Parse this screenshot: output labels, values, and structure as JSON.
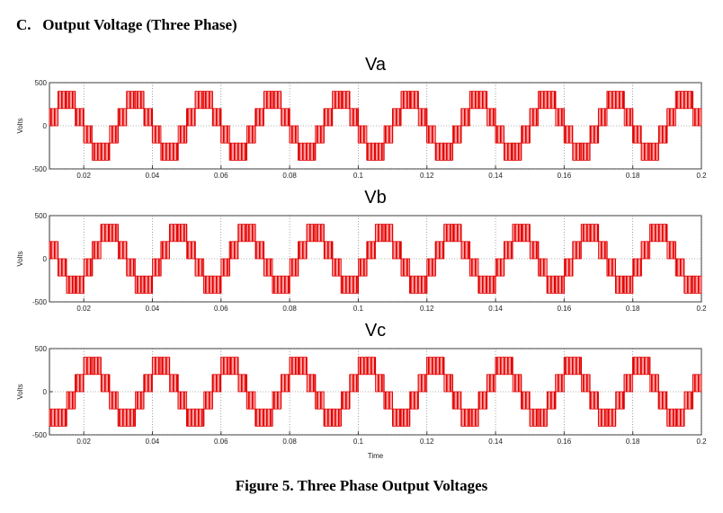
{
  "heading": "C.   Output Voltage (Three Phase)",
  "caption": "Figure 5. Three Phase Output Voltages",
  "chart_data": [
    {
      "type": "step",
      "title": "Va",
      "ylabel": "Volts",
      "color": "#e00000",
      "grid": true,
      "xlim": [
        0.01,
        0.2
      ],
      "xticks": [
        0.02,
        0.04,
        0.06,
        0.08,
        0.1,
        0.12,
        0.14,
        0.16,
        0.18,
        0.2
      ],
      "ylim": [
        -500,
        500
      ],
      "yticks": [
        -500,
        0,
        500
      ],
      "x": [
        0.01,
        0.0125,
        0.015,
        0.0175,
        0.02,
        0.0225,
        0.025,
        0.0275,
        0.03,
        0.0325,
        0.035,
        0.0375,
        0.04,
        0.0425,
        0.045,
        0.0475,
        0.05,
        0.0525,
        0.055,
        0.0575,
        0.06,
        0.0625,
        0.065,
        0.0675,
        0.07,
        0.0725,
        0.075,
        0.0775,
        0.08,
        0.0825,
        0.085,
        0.0875,
        0.09,
        0.0925,
        0.095,
        0.0975,
        0.1,
        0.1025,
        0.105,
        0.1075,
        0.11,
        0.1125,
        0.115,
        0.1175,
        0.12,
        0.1225,
        0.125,
        0.1275,
        0.13,
        0.1325,
        0.135,
        0.1375,
        0.14,
        0.1425,
        0.145,
        0.1475,
        0.15,
        0.1525,
        0.155,
        0.1575,
        0.16,
        0.1625,
        0.165,
        0.1675,
        0.17,
        0.1725,
        0.175,
        0.1775,
        0.18,
        0.1825,
        0.185,
        0.1875,
        0.19,
        0.1925,
        0.195,
        0.1975
      ],
      "values": [
        200,
        400,
        400,
        200,
        -200,
        -400,
        -400,
        -200,
        200,
        400,
        400,
        200,
        -200,
        -400,
        -400,
        -200,
        200,
        400,
        400,
        200,
        -200,
        -400,
        -400,
        -200,
        200,
        400,
        400,
        200,
        -200,
        -400,
        -400,
        -200,
        200,
        400,
        400,
        200,
        -200,
        -400,
        -400,
        -200,
        200,
        400,
        400,
        200,
        -200,
        -400,
        -400,
        -200,
        200,
        400,
        400,
        200,
        -200,
        -400,
        -400,
        -200,
        200,
        400,
        400,
        200,
        -200,
        -400,
        -400,
        -200,
        200,
        400,
        400,
        200,
        -200,
        -400,
        -400,
        -200,
        200,
        400,
        400,
        200
      ]
    },
    {
      "type": "step",
      "title": "Vb",
      "ylabel": "Volts",
      "color": "#e00000",
      "grid": true,
      "xlim": [
        0.01,
        0.2
      ],
      "xticks": [
        0.02,
        0.04,
        0.06,
        0.08,
        0.1,
        0.12,
        0.14,
        0.16,
        0.18,
        0.2
      ],
      "ylim": [
        -500,
        500
      ],
      "yticks": [
        -500,
        0,
        500
      ],
      "x": [
        0.01,
        0.0125,
        0.015,
        0.0175,
        0.02,
        0.0225,
        0.025,
        0.0275,
        0.03,
        0.0325,
        0.035,
        0.0375,
        0.04,
        0.0425,
        0.045,
        0.0475,
        0.05,
        0.0525,
        0.055,
        0.0575,
        0.06,
        0.0625,
        0.065,
        0.0675,
        0.07,
        0.0725,
        0.075,
        0.0775,
        0.08,
        0.0825,
        0.085,
        0.0875,
        0.09,
        0.0925,
        0.095,
        0.0975,
        0.1,
        0.1025,
        0.105,
        0.1075,
        0.11,
        0.1125,
        0.115,
        0.1175,
        0.12,
        0.1225,
        0.125,
        0.1275,
        0.13,
        0.1325,
        0.135,
        0.1375,
        0.14,
        0.1425,
        0.145,
        0.1475,
        0.15,
        0.1525,
        0.155,
        0.1575,
        0.16,
        0.1625,
        0.165,
        0.1675,
        0.17,
        0.1725,
        0.175,
        0.1775,
        0.18,
        0.1825,
        0.185,
        0.1875,
        0.19,
        0.1925,
        0.195,
        0.1975
      ],
      "values": [
        200,
        -200,
        -400,
        -400,
        -200,
        200,
        400,
        400,
        200,
        -200,
        -400,
        -400,
        -200,
        200,
        400,
        400,
        200,
        -200,
        -400,
        -400,
        -200,
        200,
        400,
        400,
        200,
        -200,
        -400,
        -400,
        -200,
        200,
        400,
        400,
        200,
        -200,
        -400,
        -400,
        -200,
        200,
        400,
        400,
        200,
        -200,
        -400,
        -400,
        -200,
        200,
        400,
        400,
        200,
        -200,
        -400,
        -400,
        -200,
        200,
        400,
        400,
        200,
        -200,
        -400,
        -400,
        -200,
        200,
        400,
        400,
        200,
        -200,
        -400,
        -400,
        -200,
        200,
        400,
        400,
        200,
        -200,
        -400,
        -400
      ]
    },
    {
      "type": "step",
      "title": "Vc",
      "ylabel": "Volts",
      "xlabel": "Time",
      "color": "#e00000",
      "grid": true,
      "xlim": [
        0.01,
        0.2
      ],
      "xticks": [
        0.02,
        0.04,
        0.06,
        0.08,
        0.1,
        0.12,
        0.14,
        0.16,
        0.18,
        0.2
      ],
      "ylim": [
        -500,
        500
      ],
      "yticks": [
        -500,
        0,
        500
      ],
      "x": [
        0.01,
        0.0125,
        0.015,
        0.0175,
        0.02,
        0.0225,
        0.025,
        0.0275,
        0.03,
        0.0325,
        0.035,
        0.0375,
        0.04,
        0.0425,
        0.045,
        0.0475,
        0.05,
        0.0525,
        0.055,
        0.0575,
        0.06,
        0.0625,
        0.065,
        0.0675,
        0.07,
        0.0725,
        0.075,
        0.0775,
        0.08,
        0.0825,
        0.085,
        0.0875,
        0.09,
        0.0925,
        0.095,
        0.0975,
        0.1,
        0.1025,
        0.105,
        0.1075,
        0.11,
        0.1125,
        0.115,
        0.1175,
        0.12,
        0.1225,
        0.125,
        0.1275,
        0.13,
        0.1325,
        0.135,
        0.1375,
        0.14,
        0.1425,
        0.145,
        0.1475,
        0.15,
        0.1525,
        0.155,
        0.1575,
        0.16,
        0.1625,
        0.165,
        0.1675,
        0.17,
        0.1725,
        0.175,
        0.1775,
        0.18,
        0.1825,
        0.185,
        0.1875,
        0.19,
        0.1925,
        0.195,
        0.1975
      ],
      "values": [
        -400,
        -400,
        -200,
        200,
        400,
        400,
        200,
        -200,
        -400,
        -400,
        -200,
        200,
        400,
        400,
        200,
        -200,
        -400,
        -400,
        -200,
        200,
        400,
        400,
        200,
        -200,
        -400,
        -400,
        -200,
        200,
        400,
        400,
        200,
        -200,
        -400,
        -400,
        -200,
        200,
        400,
        400,
        200,
        -200,
        -400,
        -400,
        -200,
        200,
        400,
        400,
        200,
        -200,
        -400,
        -400,
        -200,
        200,
        400,
        400,
        200,
        -200,
        -400,
        -400,
        -200,
        200,
        400,
        400,
        200,
        -200,
        -400,
        -400,
        -200,
        200,
        400,
        400,
        200,
        -200,
        -400,
        -400,
        -200,
        200
      ]
    }
  ]
}
